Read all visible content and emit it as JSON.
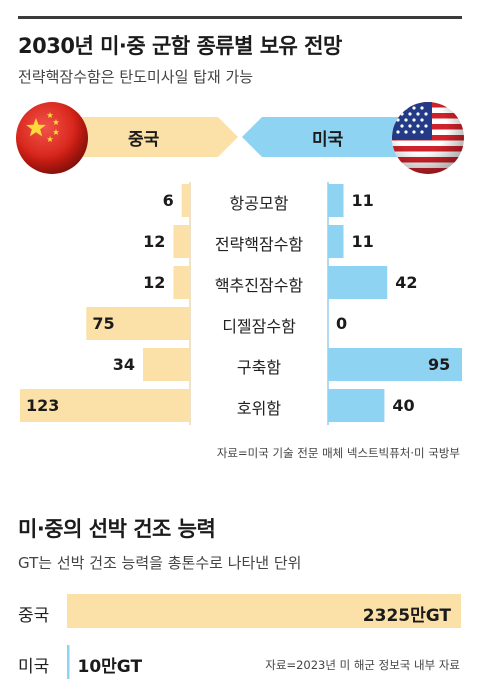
{
  "chart_data": [
    {
      "type": "bar",
      "title": "2030년 미·중 군함 종류별 보유 전망",
      "subtitle": "전략핵잠수함은 탄도미사일 탑재 가능",
      "categories": [
        "항공모함",
        "전략핵잠수함",
        "핵추진잠수함",
        "디젤잠수함",
        "구축함",
        "호위함"
      ],
      "series": [
        {
          "name": "중국",
          "values": [
            6,
            12,
            12,
            75,
            34,
            123
          ],
          "color": "#fbe1a7"
        },
        {
          "name": "미국",
          "values": [
            11,
            11,
            42,
            0,
            95,
            40
          ],
          "color": "#8fd3f2"
        }
      ],
      "source": "자료=미국 기술 전문 매체 넥스트빅퓨처·미 국방부"
    },
    {
      "type": "bar",
      "title": "미·중의 선박 건조 능력",
      "subtitle": "GT는 선박 건조 능력을 총톤수로 나타낸 단위",
      "categories": [
        "중국",
        "미국"
      ],
      "values": [
        2325,
        10
      ],
      "value_labels": [
        "2325만GT",
        "10만GT"
      ],
      "unit": "만GT",
      "color": "#fbe1a7",
      "us_color": "#8fd3f2",
      "source": "자료=2023년 미 해군 정보국 내부 자료"
    }
  ]
}
